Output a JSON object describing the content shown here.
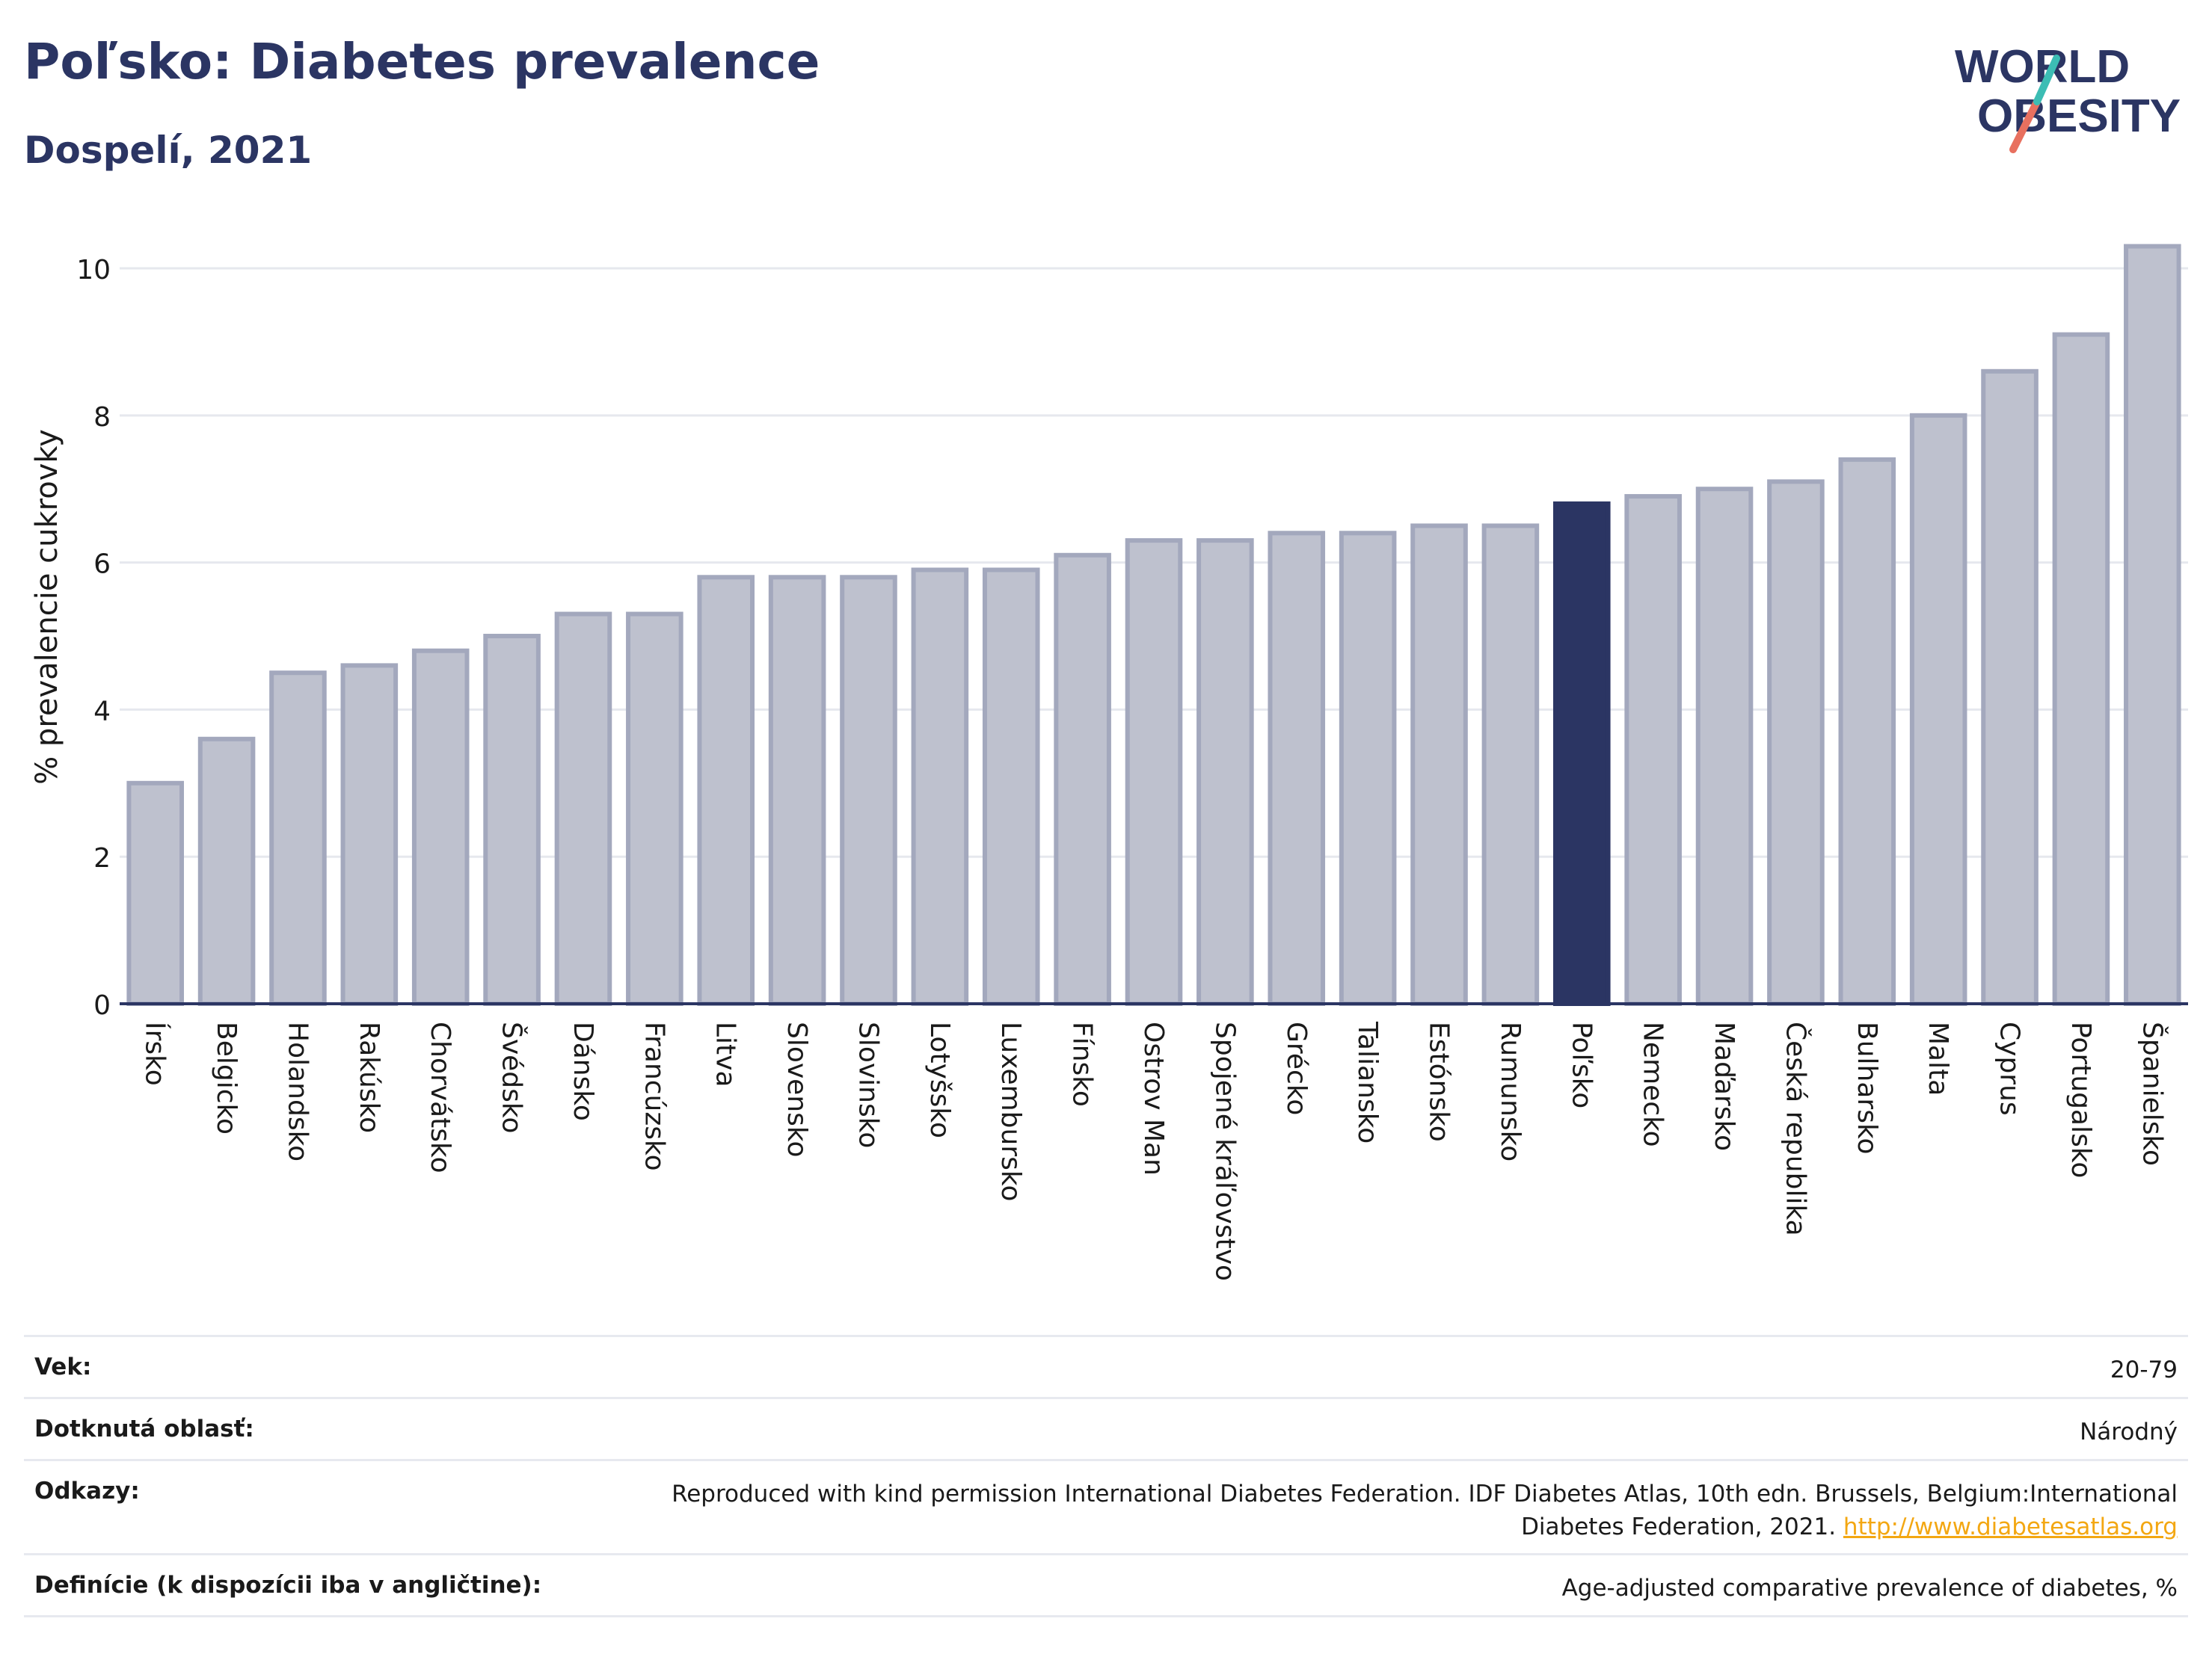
{
  "header": {
    "title": "Poľsko: Diabetes prevalence",
    "subtitle": "Dospelí, 2021"
  },
  "logo": {
    "line1": "WORLD",
    "line2": "OBESITY",
    "colors": {
      "text": "#2b3563",
      "slash_red": "#e8705f",
      "slash_teal": "#3cbdb4"
    }
  },
  "chart_data": {
    "type": "bar",
    "title": "Poľsko: Diabetes prevalence",
    "subtitle": "Dospelí, 2021",
    "xlabel": "",
    "ylabel": "% prevalencie cukrovky",
    "ylim": [
      0,
      10.6
    ],
    "yticks": [
      0,
      2,
      4,
      6,
      8,
      10
    ],
    "grid": true,
    "highlight": "Poľsko",
    "colors": {
      "bar": "#bec1ce",
      "bar_border": "#a3a8bd",
      "highlight": "#2b3563",
      "grid": "#e6e8ee",
      "axis": "#2b3563"
    },
    "categories": [
      "Írsko",
      "Belgicko",
      "Holandsko",
      "Rakúsko",
      "Chorvátsko",
      "Švédsko",
      "Dánsko",
      "Francúzsko",
      "Litva",
      "Slovensko",
      "Slovinsko",
      "Lotyšsko",
      "Luxembursko",
      "Fínsko",
      "Ostrov Man",
      "Spojené kráľovstvo",
      "Grécko",
      "Taliansko",
      "Estónsko",
      "Rumunsko",
      "Poľsko",
      "Nemecko",
      "Maďarsko",
      "Česká republika",
      "Bulharsko",
      "Malta",
      "Cyprus",
      "Portugalsko",
      "Španielsko"
    ],
    "values": [
      3.0,
      3.6,
      4.5,
      4.6,
      4.8,
      5.0,
      5.3,
      5.3,
      5.8,
      5.8,
      5.8,
      5.9,
      5.9,
      6.1,
      6.3,
      6.3,
      6.4,
      6.4,
      6.5,
      6.5,
      6.8,
      6.9,
      7.0,
      7.1,
      7.4,
      8.0,
      8.6,
      9.1,
      10.3
    ]
  },
  "meta": {
    "age_label": "Vek:",
    "age_value": "20-79",
    "area_label": "Dotknutá oblasť:",
    "area_value": "Národný",
    "refs_label": "Odkazy:",
    "refs_text": "Reproduced with kind permission International Diabetes Federation.  IDF Diabetes Atlas, 10th edn. Brussels, Belgium:International Diabetes Federation, 2021.",
    "refs_link": "http://www.diabetesatlas.org",
    "def_label": "Definície (k dispozícii iba v angličtine):",
    "def_value": "Age-adjusted comparative prevalence of diabetes, %"
  }
}
